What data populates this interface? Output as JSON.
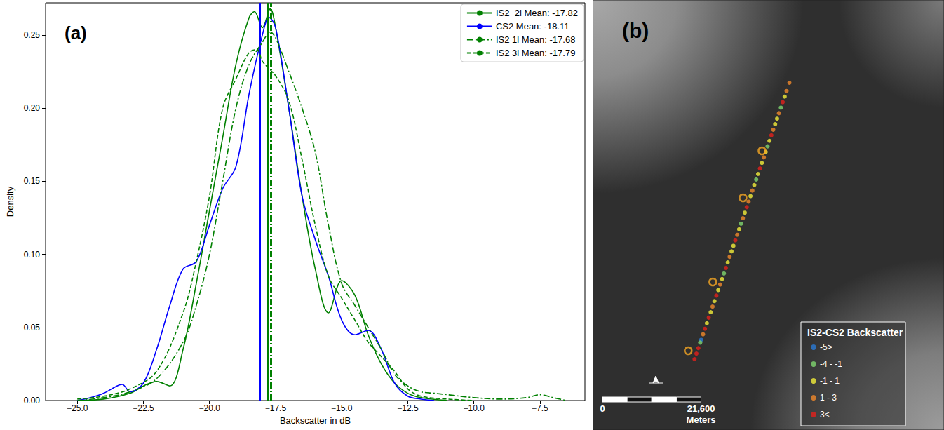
{
  "chart_data": [
    {
      "type": "line",
      "panel": "(a)",
      "x_label": "Backscatter in dB",
      "y_label": "Density",
      "xlim": [
        -26.2,
        -5.8
      ],
      "xticks": [
        {
          "value": -25,
          "label": "−25.0"
        },
        {
          "value": -22.5,
          "label": "−22.5"
        },
        {
          "value": -20,
          "label": "−20.0"
        },
        {
          "value": -17.5,
          "label": "−17.5"
        },
        {
          "value": -15,
          "label": "−15.0"
        },
        {
          "value": -12.5,
          "label": "−12.5"
        },
        {
          "value": -10,
          "label": "−10.0"
        },
        {
          "value": -7.5,
          "label": "−7.5"
        }
      ],
      "ylim": [
        0,
        0.272
      ],
      "yticks": [
        {
          "value": 0,
          "label": "0.00"
        },
        {
          "value": 0.05,
          "label": "0.05"
        },
        {
          "value": 0.1,
          "label": "0.10"
        },
        {
          "value": 0.15,
          "label": "0.15"
        },
        {
          "value": 0.2,
          "label": "0.20"
        },
        {
          "value": 0.25,
          "label": "0.25"
        }
      ],
      "grid": false,
      "legend": "upper right",
      "series": [
        {
          "name": "IS2_2l Mean: -17.82",
          "mean": -17.82,
          "color": "#008000",
          "line_style": "solid",
          "x": [
            -25,
            -24,
            -23,
            -22.5,
            -22,
            -21.5,
            -21,
            -20.5,
            -20,
            -19.5,
            -19,
            -18.5,
            -18.3,
            -18,
            -17.7,
            -17.5,
            -17,
            -16.5,
            -16,
            -15.5,
            -15,
            -14.5,
            -14,
            -13.5,
            -13,
            -12.5,
            -12,
            -11
          ],
          "values": [
            0,
            0.001,
            0.005,
            0.01,
            0.013,
            0.01,
            0.035,
            0.08,
            0.13,
            0.18,
            0.23,
            0.262,
            0.266,
            0.255,
            0.268,
            0.255,
            0.2,
            0.14,
            0.09,
            0.06,
            0.082,
            0.072,
            0.045,
            0.025,
            0.012,
            0.005,
            0.002,
            0
          ]
        },
        {
          "name": "CS2 Mean: -18.11",
          "mean": -18.11,
          "color": "#0000ff",
          "line_style": "solid",
          "x": [
            -25,
            -24.5,
            -24,
            -23.5,
            -23.3,
            -23,
            -22.5,
            -22,
            -21.5,
            -21,
            -20.5,
            -20,
            -19.5,
            -19,
            -18.5,
            -18,
            -17.75,
            -17.5,
            -17,
            -16.5,
            -16,
            -15.5,
            -15,
            -14.5,
            -14,
            -13.5,
            -13,
            -12.5,
            -12,
            -11.5
          ],
          "values": [
            0,
            0.002,
            0.005,
            0.01,
            0.011,
            0.006,
            0.012,
            0.035,
            0.065,
            0.09,
            0.095,
            0.12,
            0.145,
            0.16,
            0.21,
            0.25,
            0.262,
            0.255,
            0.2,
            0.14,
            0.11,
            0.085,
            0.055,
            0.045,
            0.048,
            0.035,
            0.012,
            0.003,
            0.001,
            0
          ]
        },
        {
          "name": "IS2 1l Mean: -17.68",
          "mean": -17.68,
          "color": "#008000",
          "line_style": "dashdot",
          "x": [
            -25,
            -24,
            -23,
            -22,
            -21,
            -20.5,
            -20,
            -19.5,
            -19,
            -18.5,
            -18,
            -17.7,
            -17.5,
            -17,
            -16.5,
            -16,
            -15.5,
            -15,
            -14.5,
            -14,
            -13.5,
            -13,
            -12.5,
            -12,
            -11.5,
            -11,
            -10,
            -9,
            -8,
            -7.5,
            -7,
            -6.5
          ],
          "values": [
            0,
            0.002,
            0.006,
            0.015,
            0.04,
            0.065,
            0.1,
            0.15,
            0.2,
            0.23,
            0.245,
            0.252,
            0.248,
            0.225,
            0.2,
            0.17,
            0.12,
            0.08,
            0.065,
            0.05,
            0.035,
            0.018,
            0.01,
            0.006,
            0.005,
            0.004,
            0.002,
            0.001,
            0.002,
            0.004,
            0.002,
            0
          ]
        },
        {
          "name": "IS2 3l Mean: -17.79",
          "mean": -17.79,
          "color": "#008000",
          "line_style": "dashed",
          "x": [
            -25,
            -24,
            -23,
            -22,
            -21,
            -20.5,
            -20,
            -19.5,
            -19,
            -18.5,
            -18.2,
            -18,
            -17.5,
            -17,
            -16.5,
            -16,
            -15.5,
            -15,
            -14.5,
            -14,
            -13.5,
            -13,
            -12.5,
            -12,
            -11,
            -10
          ],
          "values": [
            0.001,
            0.003,
            0.008,
            0.02,
            0.06,
            0.095,
            0.14,
            0.2,
            0.22,
            0.238,
            0.24,
            0.232,
            0.222,
            0.205,
            0.165,
            0.12,
            0.085,
            0.07,
            0.055,
            0.04,
            0.03,
            0.02,
            0.008,
            0.003,
            0.001,
            0
          ]
        }
      ]
    },
    {
      "type": "scatter",
      "panel": "(b)",
      "legend_title": "IS2-CS2 Backscatter",
      "xlim": [
        0,
        77000
      ],
      "ylim": [
        0,
        94400
      ],
      "tick_labels": false,
      "grid": false,
      "legend": "lower right",
      "scale_bar": {
        "ticks": [
          {
            "value": 0,
            "label": "0"
          },
          {
            "value": 21600,
            "label": "21,600"
          }
        ],
        "unit": "Meters"
      },
      "series": [
        {
          "name": "-5>",
          "color": "#2b7bd6",
          "marker": "circle",
          "x": [
            23785
          ],
          "values": [
            19801
          ]
        },
        {
          "name": "-4 - -1",
          "color": "#7fd66f",
          "marker": "circle",
          "x": [
            23577,
            28775,
            32517,
            35844,
            38338,
            41249
          ],
          "values": [
            19195,
            34364,
            45285,
            54993,
            62275,
            70769
          ]
        },
        {
          "name": "-1 - 1",
          "color": "#f2ee3a",
          "marker": "circle",
          "x": [
            25033,
            25864,
            26696,
            27528,
            28359,
            29607,
            30438,
            30854,
            32101,
            33349,
            34596,
            35428,
            36259,
            37091,
            37923,
            38754,
            40002,
            40417,
            42081
          ],
          "values": [
            23442,
            25869,
            28296,
            30723,
            33150,
            36791,
            39218,
            40431,
            44072,
            47712,
            51353,
            53780,
            56207,
            58634,
            61061,
            63488,
            67129,
            68342,
            73196
          ]
        },
        {
          "name": "1 - 3",
          "color": "#f0882a",
          "marker": "circle",
          "x": [
            24201,
            26280,
            27943,
            30022,
            31686,
            32933,
            34180,
            35012,
            37507,
            39586,
            40833,
            42496,
            43120
          ],
          "values": [
            21015,
            27082,
            31937,
            38004,
            42858,
            46499,
            50139,
            52566,
            59847,
            65915,
            69556,
            74410,
            76230
          ]
        },
        {
          "name": "3<",
          "color": "#e3201c",
          "marker": "circle",
          "x": [
            22330,
            22746,
            23162,
            24617,
            25449,
            27112,
            29191,
            31270,
            33765,
            36675,
            39170,
            41665
          ],
          "values": [
            15554,
            16768,
            17981,
            22228,
            24655,
            29509,
            35577,
            41645,
            48926,
            57420,
            64702,
            71983
          ]
        },
        {
          "color": "#f5a623",
          "marker": "circle_open",
          "x": [
            20944,
            26334,
            32956,
            37114
          ],
          "values": [
            17402,
            32494,
            50974,
            61292
          ]
        }
      ]
    }
  ]
}
